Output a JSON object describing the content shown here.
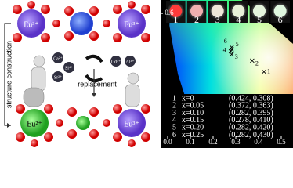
{
  "diagram": {
    "top_sites": [
      "Eu³⁺",
      "Eu³⁺"
    ],
    "bottom_sites": [
      "Eu²⁺",
      "Eu³⁺"
    ],
    "left_arrow": "structure construction",
    "middle_arrow": "replacement",
    "ions_in": [
      "Ca²⁺",
      "Si⁴⁺",
      "Sr²⁺"
    ],
    "ions_out": [
      "Gd³⁺",
      "Al³⁺"
    ]
  },
  "chart_data": {
    "type": "scatter",
    "point_labels": [
      "1",
      "2",
      "3",
      "4",
      "5",
      "6"
    ],
    "doping": [
      "x=0",
      "x=0.05",
      "x=0.10",
      "x=0.15",
      "x=0.20",
      "x=0.25"
    ],
    "x": [
      0.424,
      0.372,
      0.282,
      0.278,
      0.282,
      0.282
    ],
    "values": [
      0.308,
      0.363,
      0.395,
      0.41,
      0.42,
      0.43
    ],
    "coordinate_labels": [
      "(0.424, 0.308)",
      "(0.372, 0.363)",
      "(0.282, 0.395)",
      "(0.278, 0.410)",
      "(0.282, 0.420)",
      "(0.282, 0.430)"
    ],
    "photo_colors": [
      "#ff3a3a",
      "#f0b0b0",
      "#eee6d8",
      "#e8f0d8",
      "#e4f4dc",
      "#e0f8e0"
    ],
    "color": "#000000",
    "xlim": [
      0,
      0.55
    ],
    "ylim": [
      0,
      0.62
    ],
    "xticks": [
      {
        "value": 0,
        "label": "0.0"
      },
      {
        "value": 0.1,
        "label": "0.1"
      },
      {
        "value": 0.2,
        "label": "0.2"
      },
      {
        "value": 0.3,
        "label": "0.3"
      },
      {
        "value": 0.4,
        "label": "0.4"
      },
      {
        "value": 0.5,
        "label": "0.5"
      }
    ],
    "yticks": [
      {
        "value": 0.6,
        "label": "0.6"
      }
    ]
  }
}
